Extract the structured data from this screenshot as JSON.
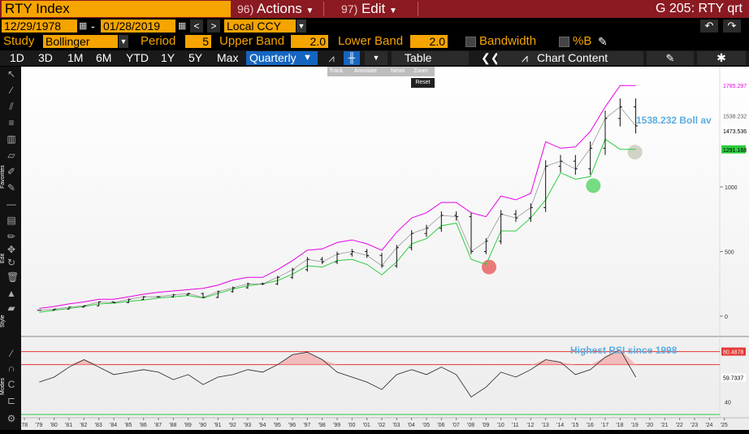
{
  "ticker": "RTY Index",
  "menus": [
    {
      "num": "96)",
      "label": "Actions"
    },
    {
      "num": "97)",
      "label": "Edit"
    }
  ],
  "function_title": "G 205: RTY qrt",
  "date_start": "12/29/1978",
  "date_sep": "-",
  "date_end": "01/28/2019",
  "currency": "Local CCY",
  "study": {
    "study_label": "Study",
    "study_value": "Bollinger",
    "period_label": "Period",
    "period_value": "5",
    "upper_label": "Upper Band",
    "upper_value": "2.0",
    "lower_label": "Lower Band",
    "lower_value": "2.0",
    "bandwidth_label": "Bandwidth",
    "pctb_label": "%B"
  },
  "ranges": [
    "1D",
    "3D",
    "1M",
    "6M",
    "YTD",
    "1Y",
    "5Y",
    "Max"
  ],
  "period_select": "Quarterly",
  "table_label": "Table",
  "chart_content_label": "Chart Content",
  "chart_tools": [
    "Track",
    "Annotate",
    "News",
    "Zoom"
  ],
  "reset_label": "Reset",
  "side_labels": {
    "favorites": "Favorites",
    "edit": "Edit",
    "style": "Style",
    "modes": "Modes"
  },
  "price_annotation": "1538.232 Boll av",
  "rsi_annotation": "Highest RSI since 1998",
  "price_tags": [
    "1785.297",
    "1538.232",
    "1473.536",
    "1291.168"
  ],
  "rsi_tags": [
    "80.4878",
    "59.7337"
  ],
  "colors": {
    "orange": "#f5a400",
    "header": "#8b1a22",
    "upper_band": "#e600e6",
    "lower_band": "#2ecc40",
    "annotation": "#5dade2",
    "rsi_line": "#e53935"
  },
  "chart_data": [
    {
      "type": "line",
      "ylim": [
        0,
        1900
      ],
      "yticks": [
        0,
        500,
        1000
      ],
      "xticks": [
        "'78",
        "'79",
        "'80",
        "'81",
        "'82",
        "'83",
        "'84",
        "'85",
        "'86",
        "'87",
        "'88",
        "'89",
        "'90",
        "'91",
        "'92",
        "'93",
        "'94",
        "'95",
        "'96",
        "'97",
        "'98",
        "'99",
        "'00",
        "'01",
        "'02",
        "'03",
        "'04",
        "'05",
        "'06",
        "'07",
        "'08",
        "'09",
        "'10",
        "'11",
        "'12",
        "'13",
        "'14",
        "'15",
        "'16",
        "'17",
        "'18",
        "'19",
        "'20",
        "'21",
        "'22",
        "'23",
        "'24",
        "'25"
      ],
      "x": [
        1979,
        1980,
        1981,
        1982,
        1983,
        1984,
        1985,
        1986,
        1987,
        1988,
        1989,
        1990,
        1991,
        1992,
        1993,
        1994,
        1995,
        1996,
        1997,
        1998,
        1999,
        2000,
        2001,
        2002,
        2003,
        2004,
        2005,
        2006,
        2007,
        2008,
        2009,
        2010,
        2011,
        2012,
        2013,
        2014,
        2015,
        2016,
        2017,
        2018,
        2019.05
      ],
      "series": [
        {
          "values": [
            45,
            55,
            70,
            80,
            110,
            105,
            130,
            150,
            150,
            165,
            175,
            145,
            190,
            220,
            250,
            250,
            300,
            360,
            440,
            420,
            480,
            500,
            470,
            390,
            530,
            640,
            680,
            780,
            770,
            500,
            580,
            790,
            760,
            840,
            1160,
            1200,
            1140,
            1300,
            1530,
            1620,
            1473
          ]
        },
        {
          "values": [
            60,
            75,
            95,
            110,
            130,
            130,
            150,
            170,
            185,
            195,
            205,
            215,
            240,
            280,
            300,
            300,
            360,
            430,
            510,
            520,
            570,
            590,
            560,
            510,
            650,
            760,
            800,
            880,
            880,
            800,
            770,
            930,
            900,
            950,
            1350,
            1300,
            1310,
            1430,
            1620,
            1785,
            1785
          ]
        },
        {
          "values": [
            30,
            45,
            60,
            75,
            95,
            100,
            115,
            125,
            140,
            150,
            160,
            140,
            175,
            210,
            235,
            250,
            275,
            325,
            390,
            380,
            430,
            440,
            400,
            320,
            420,
            560,
            600,
            700,
            720,
            440,
            400,
            660,
            660,
            760,
            900,
            1110,
            1060,
            1080,
            1370,
            1291,
            1291
          ]
        }
      ]
    },
    {
      "type": "line",
      "yticks": [
        40
      ],
      "series": [
        {
          "values": [
            56,
            60,
            68,
            74,
            68,
            62,
            64,
            66,
            64,
            58,
            62,
            54,
            60,
            62,
            66,
            64,
            70,
            78,
            80,
            74,
            64,
            60,
            56,
            50,
            62,
            66,
            62,
            68,
            62,
            44,
            52,
            64,
            60,
            66,
            74,
            72,
            62,
            66,
            76,
            82,
            60
          ]
        }
      ]
    }
  ]
}
